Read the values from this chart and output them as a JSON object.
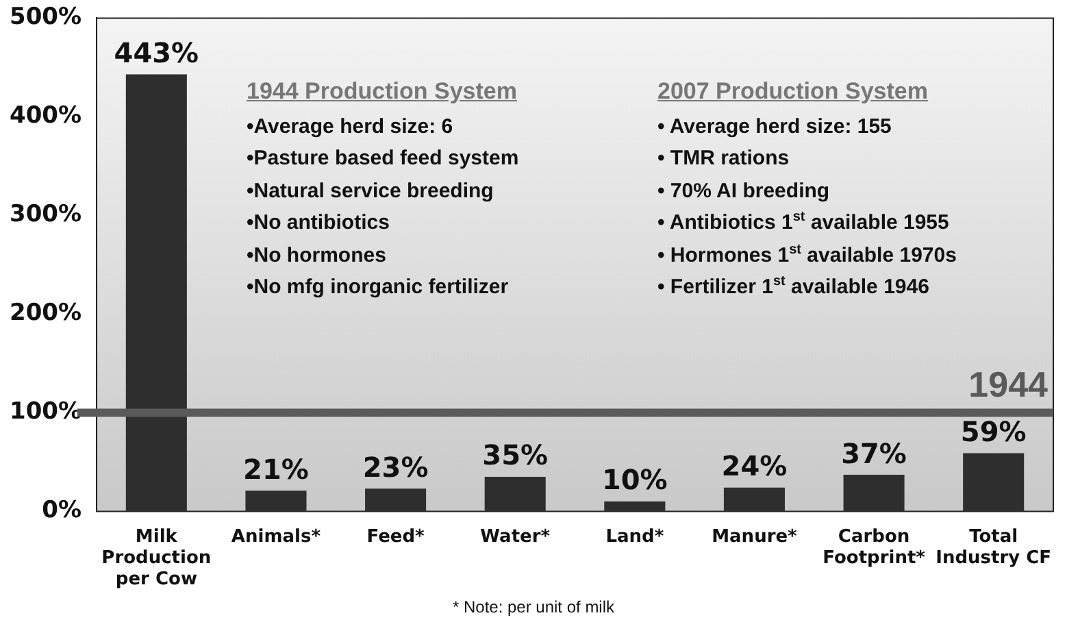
{
  "chart_data": {
    "type": "bar",
    "categories": [
      "Milk Production per Cow",
      "Animals*",
      "Feed*",
      "Water*",
      "Land*",
      "Manure*",
      "Carbon Footprint*",
      "Total Industry CF"
    ],
    "values": [
      443,
      21,
      23,
      35,
      10,
      24,
      37,
      59
    ],
    "color": "#2e2e2e",
    "value_labels": [
      "443%",
      "21%",
      "23%",
      "35%",
      "10%",
      "24%",
      "37%",
      "59%"
    ],
    "ylim": [
      0,
      500
    ],
    "yticks": [
      {
        "value": 0,
        "label": "0%"
      },
      {
        "value": 100,
        "label": "100%"
      },
      {
        "value": 200,
        "label": "200%"
      },
      {
        "value": 300,
        "label": "300%"
      },
      {
        "value": 400,
        "label": "400%"
      },
      {
        "value": 500,
        "label": "500%"
      }
    ],
    "grid": false,
    "legend": false,
    "ref_lines": [
      {
        "axis": "y",
        "value": 100,
        "color": "#5a5a5a"
      }
    ],
    "annotations": [
      {
        "text": "1944",
        "y": 100
      },
      "1944 Production System",
      "•Average herd size: 6",
      "•Pasture based feed system",
      "•Natural service breeding",
      "•No antibiotics",
      "•No hormones",
      "•No mfg inorganic fertilizer",
      "2007 Production System",
      "•  Average herd size: 155",
      "•  TMR rations",
      "•  70% AI breeding",
      "•  Antibiotics 1$^{st}$ available 1955",
      "•  Hormones 1$^{st}$ available 1970s",
      "•  Fertilizer 1$^{st}$ available 1946",
      "* Note: per unit of milk"
    ]
  }
}
